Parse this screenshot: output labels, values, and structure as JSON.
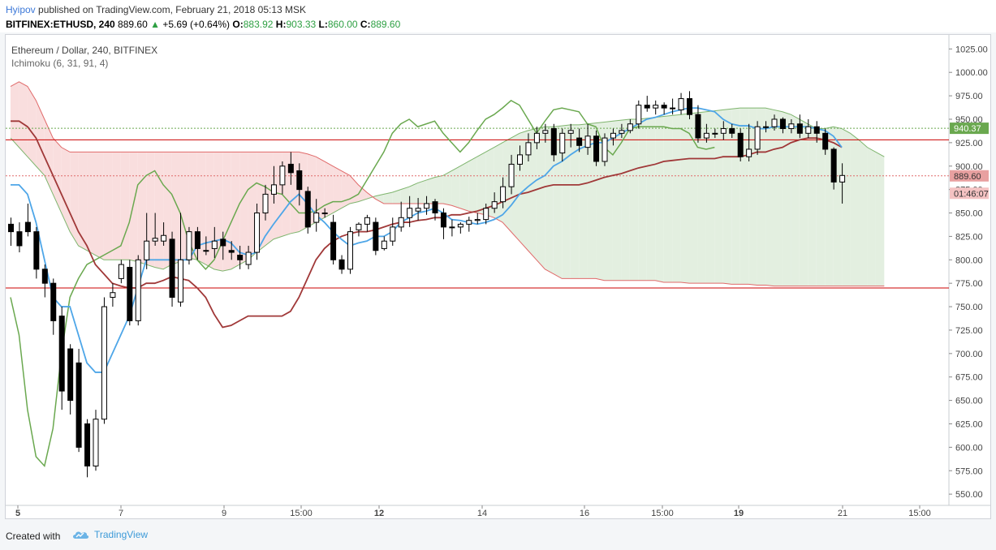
{
  "header": {
    "author": "Hyipov",
    "published": "published on TradingView.com, February 21, 2018 05:13 MSK",
    "symbol": "BITFINEX:ETHUSD, 240",
    "last": "889.60",
    "arrow": "▲",
    "change": "+5.69 (+0.64%)",
    "o_label": "O:",
    "o_val": "883.92",
    "h_label": "H:",
    "h_val": "903.33",
    "l_label": "L:",
    "l_val": "860.00",
    "c_label": "C:",
    "c_val": "889.60"
  },
  "legend": {
    "title": "Ethereum / Dollar, 240, BITFINEX",
    "indicator": "Ichimoku (6, 31, 91, 4)"
  },
  "footer": {
    "created": "Created with",
    "brand": "TradingView",
    "brand_icon": "tradingview-cloud-icon"
  },
  "colors": {
    "up_candle": "#ffffff",
    "down_candle": "#000000",
    "conversion": "#4ea6e8",
    "base": "#a03838",
    "lagging": "#6aa84f",
    "cloud_bull": "#e3efe0",
    "cloud_bear": "#f9dede",
    "span_a": "#7fb56e",
    "span_b": "#e06a6a",
    "hline": "#cc0000"
  },
  "chart_data": {
    "type": "candlestick",
    "y_ticks": [
      1025,
      1000,
      975,
      950,
      925,
      900,
      875,
      850,
      825,
      800,
      775,
      750,
      725,
      700,
      675,
      650,
      625,
      600,
      575,
      550
    ],
    "ylim": [
      538,
      1040
    ],
    "x_ticks": [
      "5",
      "7",
      "9",
      "15:00",
      "12",
      "14",
      "16",
      "15:00",
      "19",
      "21",
      "15:00"
    ],
    "price_labels": [
      {
        "value": 940.37,
        "text": "940.37",
        "color": "#6aa84f"
      },
      {
        "value": 889.6,
        "text": "889.60",
        "color": "#e8a0a0"
      },
      {
        "value": 871,
        "text": "01:46:07",
        "color": "#f4c2c2"
      }
    ],
    "horizontal_lines": [
      928,
      770
    ],
    "dotted_lines": [
      940.37,
      889.6
    ],
    "candles": [
      [
        838,
        830,
        845,
        815
      ],
      [
        830,
        815,
        840,
        808
      ],
      [
        840,
        830,
        860,
        825
      ],
      [
        830,
        790,
        835,
        780
      ],
      [
        790,
        775,
        795,
        760
      ],
      [
        775,
        735,
        780,
        720
      ],
      [
        740,
        660,
        750,
        640
      ],
      [
        705,
        650,
        710,
        635
      ],
      [
        690,
        600,
        705,
        595
      ],
      [
        625,
        580,
        630,
        568
      ],
      [
        580,
        630,
        640,
        575
      ],
      [
        630,
        750,
        760,
        625
      ],
      [
        760,
        765,
        775,
        750
      ],
      [
        780,
        795,
        800,
        775
      ],
      [
        792,
        735,
        800,
        730
      ],
      [
        735,
        800,
        805,
        730
      ],
      [
        800,
        820,
        850,
        790
      ],
      [
        820,
        823,
        850,
        815
      ],
      [
        820,
        826,
        840,
        815
      ],
      [
        822,
        760,
        830,
        750
      ],
      [
        755,
        800,
        850,
        750
      ],
      [
        800,
        830,
        835,
        795
      ],
      [
        830,
        812,
        835,
        800
      ],
      [
        810,
        810,
        825,
        805
      ],
      [
        812,
        820,
        835,
        802
      ],
      [
        822,
        815,
        830,
        800
      ],
      [
        810,
        808,
        820,
        800
      ],
      [
        805,
        800,
        815,
        790
      ],
      [
        795,
        808,
        815,
        790
      ],
      [
        808,
        850,
        860,
        800
      ],
      [
        850,
        870,
        880,
        842
      ],
      [
        870,
        880,
        900,
        860
      ],
      [
        880,
        900,
        905,
        870
      ],
      [
        902,
        893,
        915,
        880
      ],
      [
        895,
        875,
        903,
        858
      ],
      [
        873,
        835,
        878,
        828
      ],
      [
        840,
        850,
        865,
        830
      ],
      [
        850,
        850,
        855,
        845
      ],
      [
        840,
        800,
        848,
        795
      ],
      [
        800,
        790,
        805,
        785
      ],
      [
        790,
        830,
        835,
        785
      ],
      [
        832,
        838,
        840,
        825
      ],
      [
        838,
        845,
        848,
        830
      ],
      [
        840,
        810,
        845,
        805
      ],
      [
        812,
        820,
        825,
        810
      ],
      [
        820,
        835,
        845,
        815
      ],
      [
        835,
        845,
        862,
        830
      ],
      [
        845,
        855,
        868,
        835
      ],
      [
        852,
        855,
        866,
        842
      ],
      [
        855,
        860,
        868,
        848
      ],
      [
        862,
        850,
        865,
        842
      ],
      [
        850,
        835,
        855,
        822
      ],
      [
        835,
        835,
        843,
        825
      ],
      [
        835,
        838,
        840,
        828
      ],
      [
        838,
        842,
        846,
        830
      ],
      [
        842,
        843,
        850,
        838
      ],
      [
        843,
        855,
        860,
        838
      ],
      [
        855,
        862,
        872,
        850
      ],
      [
        862,
        878,
        888,
        855
      ],
      [
        878,
        902,
        912,
        870
      ],
      [
        902,
        912,
        922,
        895
      ],
      [
        912,
        925,
        935,
        905
      ],
      [
        925,
        935,
        942,
        918
      ],
      [
        935,
        938,
        945,
        925
      ],
      [
        940,
        912,
        945,
        905
      ],
      [
        914,
        935,
        940,
        905
      ],
      [
        935,
        938,
        945,
        920
      ],
      [
        930,
        922,
        940,
        915
      ],
      [
        920,
        932,
        945,
        912
      ],
      [
        932,
        905,
        938,
        900
      ],
      [
        905,
        930,
        935,
        900
      ],
      [
        930,
        935,
        940,
        922
      ],
      [
        935,
        938,
        945,
        930
      ],
      [
        938,
        945,
        950,
        935
      ],
      [
        945,
        965,
        970,
        940
      ],
      [
        965,
        962,
        975,
        958
      ],
      [
        962,
        965,
        970,
        955
      ],
      [
        965,
        962,
        968,
        955
      ],
      [
        962,
        962,
        972,
        955
      ],
      [
        960,
        972,
        978,
        955
      ],
      [
        972,
        955,
        980,
        950
      ],
      [
        955,
        930,
        965,
        925
      ],
      [
        930,
        935,
        945,
        925
      ],
      [
        935,
        935,
        940,
        930
      ],
      [
        935,
        940,
        948,
        928
      ],
      [
        940,
        935,
        945,
        930
      ],
      [
        935,
        910,
        940,
        905
      ],
      [
        910,
        918,
        945,
        905
      ],
      [
        918,
        942,
        948,
        912
      ],
      [
        942,
        942,
        948,
        936
      ],
      [
        942,
        950,
        955,
        938
      ],
      [
        950,
        940,
        952,
        935
      ],
      [
        940,
        945,
        950,
        935
      ],
      [
        945,
        935,
        955,
        930
      ],
      [
        935,
        942,
        950,
        930
      ],
      [
        942,
        935,
        948,
        925
      ],
      [
        935,
        918,
        940,
        912
      ],
      [
        918,
        883,
        920,
        875
      ],
      [
        883,
        890,
        903,
        860
      ]
    ],
    "tenkan": [
      880,
      880,
      870,
      840,
      800,
      760,
      750,
      750,
      720,
      690,
      680,
      680,
      700,
      720,
      740,
      770,
      800,
      800,
      800,
      800,
      800,
      800,
      815,
      818,
      820,
      822,
      818,
      808,
      805,
      808,
      825,
      838,
      850,
      862,
      870,
      860,
      848,
      840,
      830,
      822,
      815,
      818,
      820,
      825,
      825,
      830,
      840,
      845,
      850,
      852,
      855,
      850,
      843,
      842,
      840,
      838,
      840,
      843,
      848,
      858,
      870,
      878,
      885,
      890,
      900,
      905,
      912,
      918,
      922,
      925,
      925,
      930,
      935,
      940,
      945,
      950,
      952,
      955,
      958,
      960,
      962,
      962,
      960,
      958,
      950,
      945,
      943,
      943,
      940,
      940,
      942,
      942,
      942,
      942,
      942,
      940,
      938,
      932,
      920
    ],
    "kijun": [
      948,
      948,
      942,
      930,
      910,
      890,
      870,
      850,
      830,
      815,
      795,
      785,
      775,
      772,
      770,
      770,
      775,
      775,
      778,
      782,
      780,
      778,
      770,
      760,
      742,
      728,
      730,
      735,
      740,
      740,
      740,
      740,
      740,
      745,
      760,
      780,
      800,
      812,
      820,
      825,
      828,
      830,
      830,
      832,
      835,
      838,
      840,
      840,
      842,
      843,
      845,
      845,
      848,
      848,
      850,
      852,
      855,
      858,
      862,
      866,
      870,
      872,
      875,
      878,
      880,
      880,
      880,
      880,
      882,
      885,
      888,
      890,
      892,
      895,
      898,
      900,
      902,
      905,
      906,
      907,
      908,
      908,
      908,
      908,
      910,
      910,
      910,
      912,
      915,
      915,
      918,
      920,
      925,
      928,
      930,
      930,
      928,
      925,
      920
    ],
    "chikou": [
      760,
      720,
      640,
      590,
      580,
      620,
      700,
      760,
      780,
      795,
      800,
      805,
      810,
      815,
      840,
      880,
      890,
      895,
      880,
      870,
      850,
      820,
      800,
      790,
      800,
      820,
      840,
      860,
      875,
      882,
      878,
      872,
      870,
      860,
      850,
      850,
      852,
      858,
      862,
      862,
      865,
      870,
      885,
      900,
      915,
      935,
      945,
      950,
      942,
      945,
      948,
      935,
      925,
      915,
      925,
      938,
      950,
      955,
      962,
      970,
      965,
      950,
      935,
      948,
      960,
      962,
      960,
      958,
      945,
      942,
      920,
      912,
      925,
      940,
      942,
      942,
      942,
      942,
      940,
      940,
      935,
      920,
      918,
      920
    ],
    "span_a": [
      930,
      920,
      910,
      900,
      890,
      870,
      850,
      830,
      815,
      810,
      805,
      800,
      800,
      800,
      800,
      798,
      795,
      792,
      790,
      795,
      798,
      802,
      800,
      795,
      790,
      788,
      790,
      795,
      800,
      808,
      815,
      822,
      825,
      828,
      830,
      835,
      840,
      845,
      850,
      855,
      860,
      862,
      865,
      868,
      870,
      872,
      875,
      878,
      882,
      885,
      888,
      890,
      895,
      900,
      905,
      910,
      915,
      920,
      925,
      930,
      935,
      938,
      940,
      942,
      942,
      943,
      944,
      944,
      945,
      946,
      947,
      948,
      949,
      950,
      950,
      951,
      952,
      953,
      954,
      955,
      956,
      957,
      958,
      959,
      960,
      961,
      962,
      962,
      962,
      962,
      960,
      958,
      955,
      950,
      945,
      940,
      940,
      942,
      940,
      935,
      928,
      920,
      915,
      910
    ],
    "span_b": [
      985,
      990,
      985,
      970,
      950,
      930,
      920,
      915,
      915,
      915,
      915,
      915,
      915,
      915,
      915,
      915,
      915,
      915,
      915,
      915,
      915,
      915,
      915,
      915,
      915,
      915,
      915,
      915,
      915,
      915,
      915,
      915,
      915,
      915,
      915,
      913,
      910,
      905,
      900,
      895,
      890,
      880,
      872,
      865,
      860,
      860,
      860,
      860,
      860,
      860,
      860,
      860,
      858,
      855,
      852,
      850,
      848,
      845,
      840,
      830,
      820,
      810,
      800,
      790,
      785,
      780,
      780,
      780,
      780,
      780,
      778,
      778,
      778,
      778,
      778,
      778,
      778,
      776,
      776,
      776,
      775,
      775,
      775,
      775,
      775,
      774,
      774,
      774,
      773,
      773,
      772,
      772,
      772,
      772,
      772,
      772,
      772,
      772,
      772,
      772,
      772,
      772,
      772,
      772
    ]
  }
}
